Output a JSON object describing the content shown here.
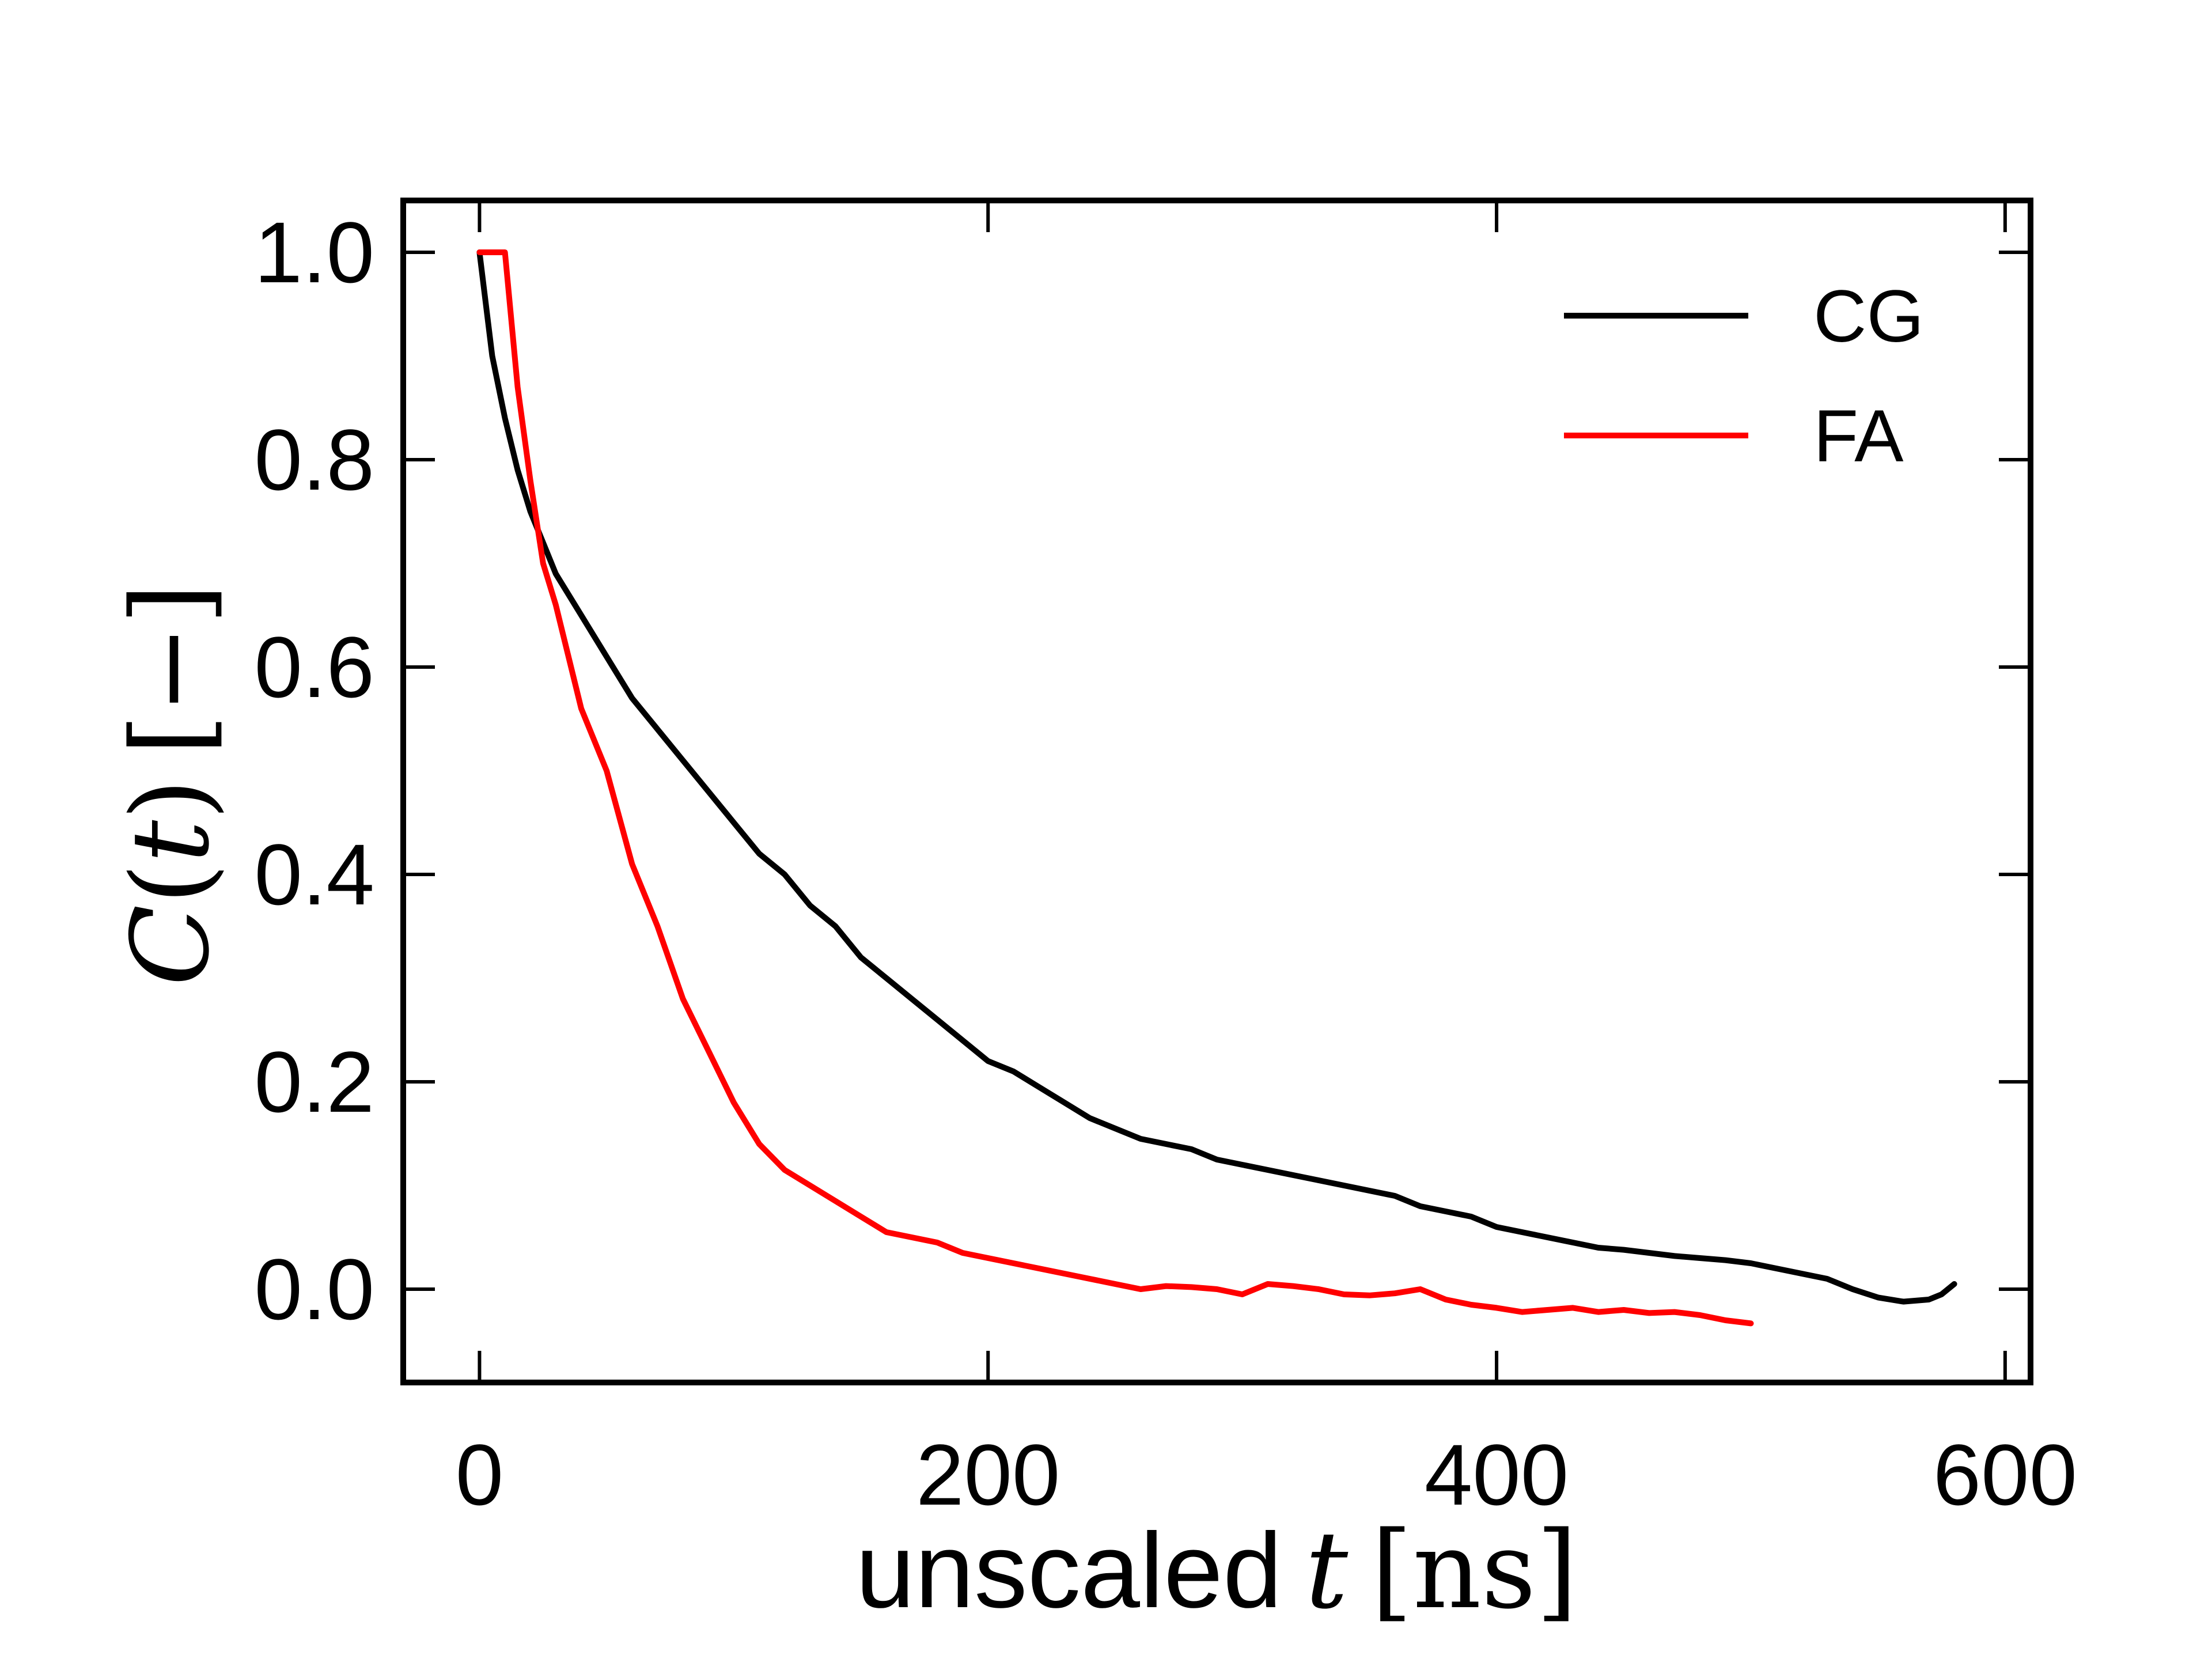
{
  "chart_data": {
    "type": "line",
    "title": "",
    "xlabel": {
      "text": "unscaled",
      "var": "t",
      "unit": "ns"
    },
    "ylabel": {
      "func": "C",
      "var": "t",
      "unit": "−"
    },
    "xlim": [
      -30,
      610
    ],
    "ylim": [
      -0.09,
      1.05
    ],
    "x_ticks": [
      0,
      200,
      400,
      600
    ],
    "x_tick_labels": [
      "0",
      "200",
      "400",
      "600"
    ],
    "y_ticks": [
      0.0,
      0.2,
      0.4,
      0.6,
      0.8,
      1.0
    ],
    "y_tick_labels": [
      "0.0",
      "0.2",
      "0.4",
      "0.6",
      "0.8",
      "1.0"
    ],
    "grid": false,
    "legend_position": "top-right",
    "series": [
      {
        "name": "CG",
        "color": "#000000",
        "x": [
          0,
          5,
          10,
          15,
          20,
          25,
          30,
          40,
          50,
          60,
          70,
          80,
          90,
          100,
          110,
          120,
          130,
          140,
          150,
          160,
          170,
          180,
          190,
          200,
          210,
          220,
          230,
          240,
          250,
          260,
          270,
          280,
          290,
          300,
          310,
          320,
          330,
          340,
          350,
          360,
          370,
          380,
          390,
          400,
          410,
          420,
          430,
          440,
          450,
          460,
          470,
          480,
          490,
          500,
          510,
          520,
          530,
          540,
          550,
          560,
          570,
          575,
          580
        ],
        "y": [
          1.0,
          0.9,
          0.84,
          0.79,
          0.75,
          0.72,
          0.69,
          0.65,
          0.61,
          0.57,
          0.54,
          0.51,
          0.48,
          0.45,
          0.42,
          0.4,
          0.37,
          0.35,
          0.32,
          0.3,
          0.28,
          0.26,
          0.24,
          0.22,
          0.21,
          0.195,
          0.18,
          0.165,
          0.155,
          0.145,
          0.14,
          0.135,
          0.125,
          0.12,
          0.115,
          0.11,
          0.105,
          0.1,
          0.095,
          0.09,
          0.08,
          0.075,
          0.07,
          0.06,
          0.055,
          0.05,
          0.045,
          0.04,
          0.038,
          0.035,
          0.032,
          0.03,
          0.028,
          0.025,
          0.02,
          0.015,
          0.01,
          0.0,
          -0.008,
          -0.012,
          -0.01,
          -0.005,
          0.005
        ]
      },
      {
        "name": "FA",
        "color": "#ff0000",
        "x": [
          0,
          10,
          15,
          20,
          25,
          30,
          40,
          50,
          60,
          70,
          80,
          90,
          100,
          110,
          120,
          130,
          140,
          150,
          160,
          170,
          180,
          190,
          200,
          210,
          220,
          230,
          240,
          250,
          260,
          270,
          280,
          290,
          300,
          310,
          320,
          330,
          340,
          350,
          360,
          370,
          380,
          390,
          400,
          410,
          420,
          430,
          440,
          450,
          460,
          470,
          480,
          490,
          500
        ],
        "y": [
          1.0,
          1.0,
          0.87,
          0.78,
          0.7,
          0.66,
          0.56,
          0.5,
          0.41,
          0.35,
          0.28,
          0.23,
          0.18,
          0.14,
          0.115,
          0.1,
          0.085,
          0.07,
          0.055,
          0.05,
          0.045,
          0.035,
          0.03,
          0.025,
          0.02,
          0.015,
          0.01,
          0.005,
          0.0,
          0.003,
          0.002,
          0.0,
          -0.005,
          0.005,
          0.003,
          0.0,
          -0.005,
          -0.006,
          -0.004,
          0.0,
          -0.01,
          -0.015,
          -0.018,
          -0.022,
          -0.02,
          -0.018,
          -0.022,
          -0.02,
          -0.023,
          -0.022,
          -0.025,
          -0.03,
          -0.033
        ]
      }
    ]
  }
}
